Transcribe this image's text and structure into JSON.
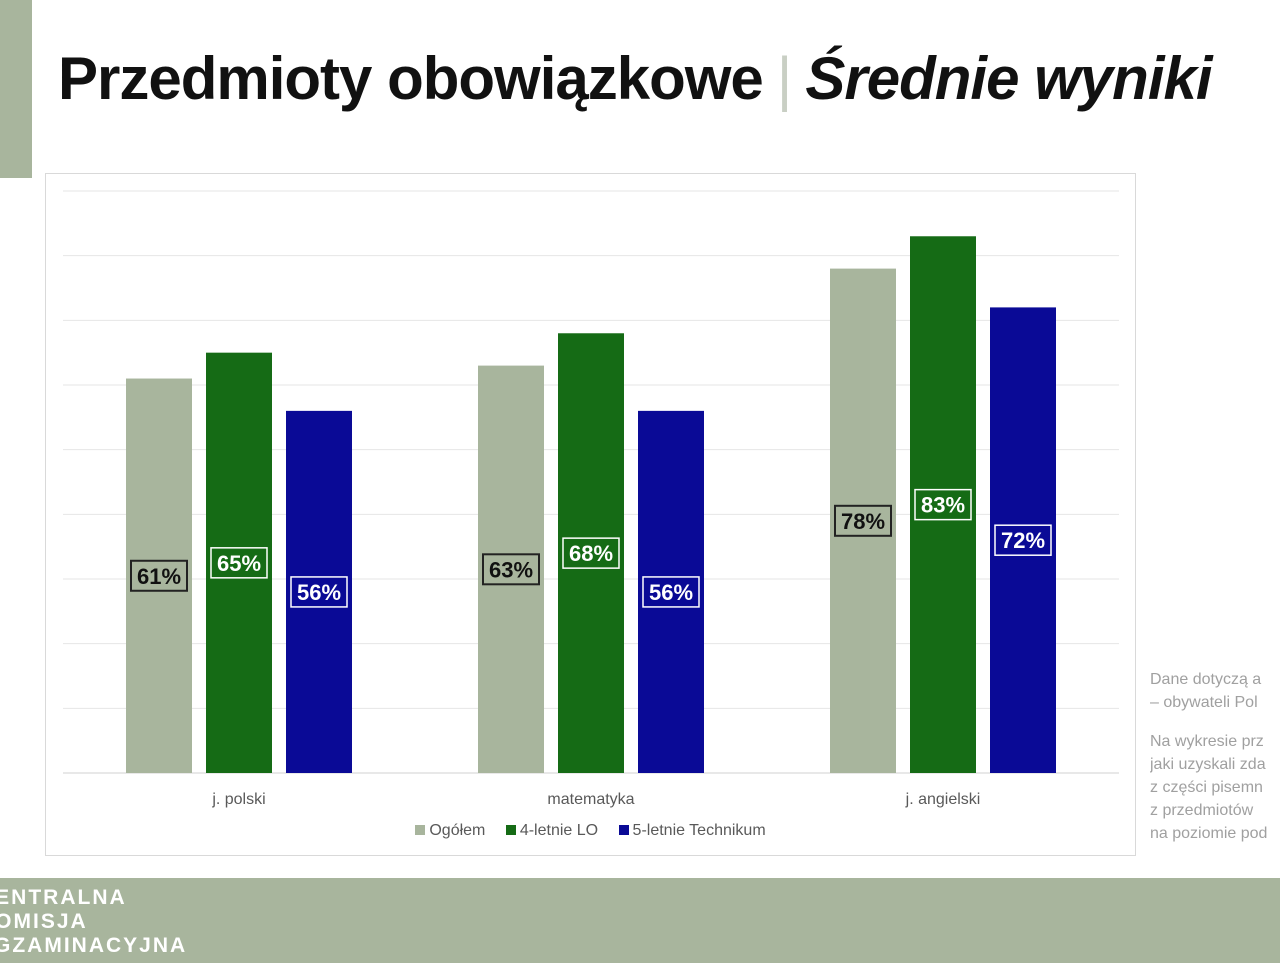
{
  "header": {
    "title": "Przedmioty obowiązkowe",
    "separator": "|",
    "subtitle": "Średnie wyniki"
  },
  "colors": {
    "accent": "#a8b59d",
    "ogolem": "#a8b59d",
    "lo": "#156b15",
    "technikum": "#0a0a96"
  },
  "chart_data": {
    "type": "bar",
    "categories": [
      "j. polski",
      "matematyka",
      "j. angielski"
    ],
    "series": [
      {
        "name": "Ogółem",
        "values": [
          61,
          63,
          78
        ],
        "labels": [
          "61%",
          "63%",
          "78%"
        ]
      },
      {
        "name": "4-letnie LO",
        "values": [
          65,
          68,
          83
        ],
        "labels": [
          "65%",
          "68%",
          "83%"
        ]
      },
      {
        "name": "5-letnie Technikum",
        "values": [
          56,
          56,
          72
        ],
        "labels": [
          "56%",
          "56%",
          "72%"
        ]
      }
    ],
    "ylim": [
      0,
      90
    ],
    "grid": true,
    "legend_position": "bottom"
  },
  "side_note": {
    "paragraph1": [
      "Dane dotyczą a",
      "– obywateli Pol"
    ],
    "paragraph2": [
      "Na wykresie prz",
      "jaki uzyskali zda",
      "z części pisemn",
      "z przedmiotów",
      "na poziomie pod"
    ]
  },
  "footer": {
    "logo_lines": [
      "CENTRALNA",
      "KOMISJA",
      "EGZAMINACYJNA"
    ]
  }
}
